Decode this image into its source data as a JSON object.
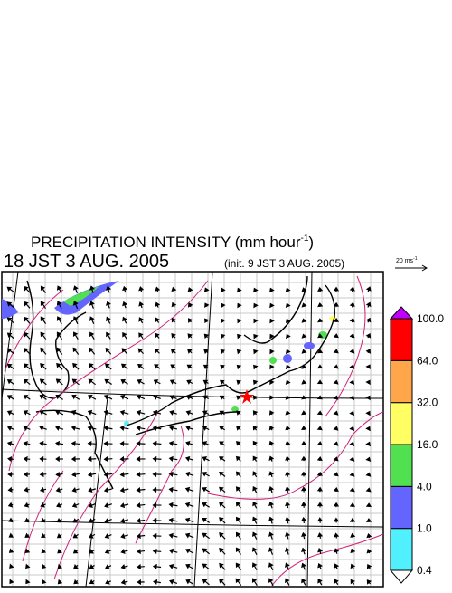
{
  "header": {
    "title_main": "PRECIPITATION INTENSITY (mm hour",
    "title_sup": "-1",
    "title_end": ")",
    "valid_time": "18 JST 3 AUG. 2005",
    "init_time": "(init. 9 JST 3 AUG. 2005)"
  },
  "wind_legend": {
    "label": "20 ms",
    "sup": "-1"
  },
  "colorbar": {
    "over_color": "#c000ff",
    "under_color": "#ffffff",
    "levels": [
      "0.4",
      "1.0",
      "4.0",
      "16.0",
      "32.0",
      "64.0",
      "100.0"
    ],
    "colors": [
      "#50f0ff",
      "#6464ff",
      "#50e050",
      "#ffff64",
      "#ffa64a",
      "#ff0000"
    ]
  }
}
